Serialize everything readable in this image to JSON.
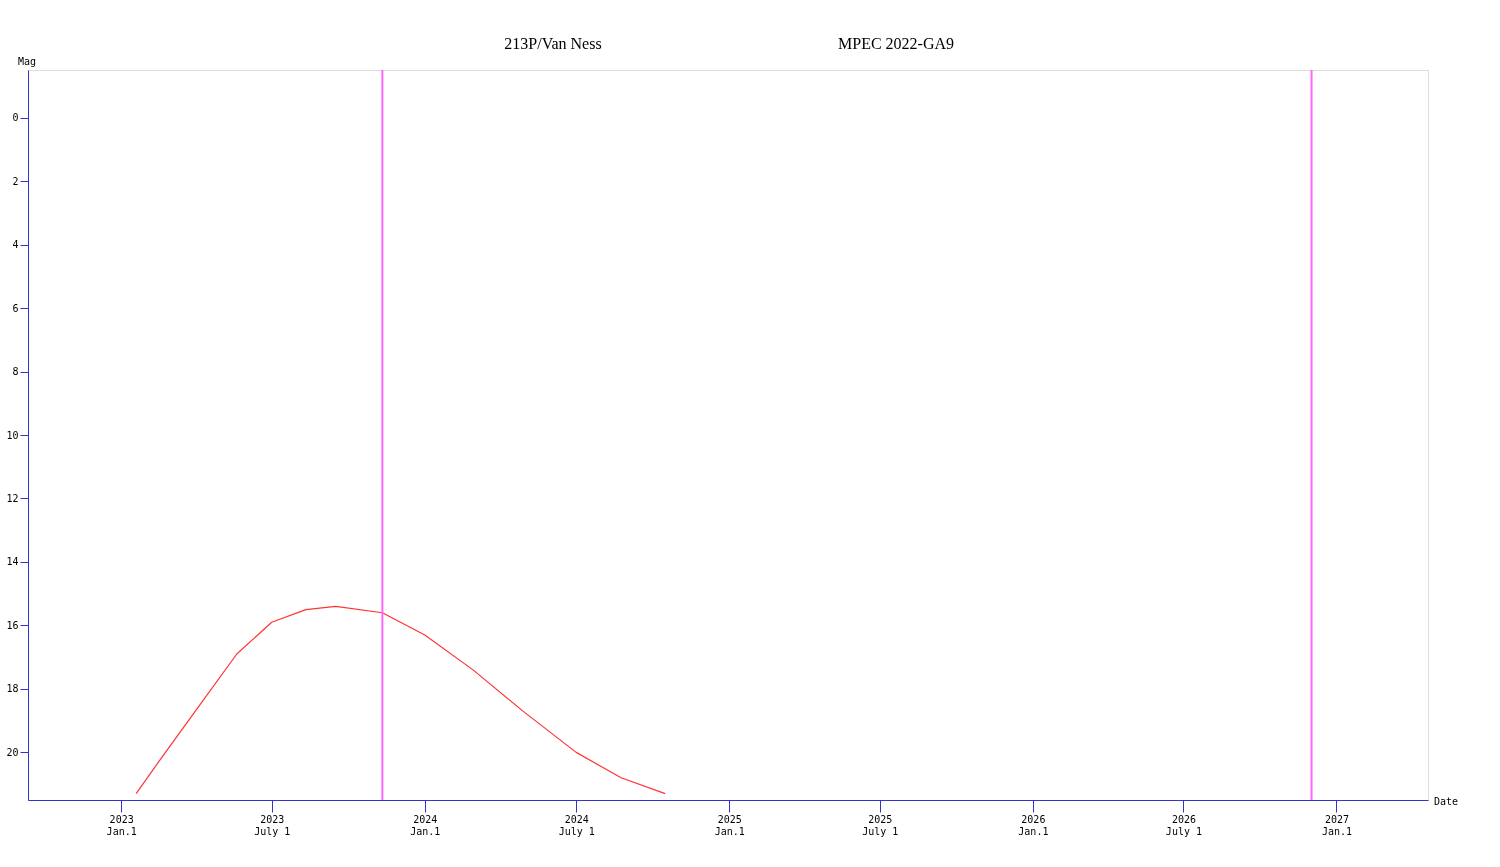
{
  "chart_data": {
    "type": "line",
    "title": "213P/Van Ness",
    "subtitle": "MPEC 2022-GA9",
    "xlabel": "Date",
    "ylabel": "Mag",
    "x": [
      "2023-01-19",
      "2023-02-15",
      "2023-04-03",
      "2023-05-20",
      "2023-07-01",
      "2023-08-11",
      "2023-09-16",
      "2023-11-11",
      "2024-01-01",
      "2024-02-28",
      "2024-04-28",
      "2024-07-01",
      "2024-08-24",
      "2024-10-16"
    ],
    "series": [
      {
        "color": "#ff3333",
        "values": [
          21.3,
          20.3,
          18.6,
          16.9,
          15.9,
          15.5,
          15.4,
          15.6,
          16.3,
          17.4,
          18.7,
          20.0,
          20.8,
          21.3
        ]
      }
    ],
    "xlim": [
      "2022-09-11",
      "2027-04-21"
    ],
    "ylim": [
      21.5,
      -1.5
    ],
    "xticks": [
      {
        "value": "2023-01-01",
        "label": "2023\nJan.1"
      },
      {
        "value": "2023-07-01",
        "label": "2023\nJuly 1"
      },
      {
        "value": "2024-01-01",
        "label": "2024\nJan.1"
      },
      {
        "value": "2024-07-01",
        "label": "2024\nJuly 1"
      },
      {
        "value": "2025-01-01",
        "label": "2025\nJan.1"
      },
      {
        "value": "2025-07-01",
        "label": "2025\nJuly 1"
      },
      {
        "value": "2026-01-01",
        "label": "2026\nJan.1"
      },
      {
        "value": "2026-07-01",
        "label": "2026\nJuly 1"
      },
      {
        "value": "2027-01-01",
        "label": "2027\nJan.1"
      }
    ],
    "yticks": [
      0,
      2,
      4,
      6,
      8,
      10,
      12,
      14,
      16,
      18,
      20
    ],
    "ref_lines": [
      {
        "axis": "x",
        "value": "2023-11-11",
        "color": "#ff66ff"
      },
      {
        "axis": "x",
        "value": "2026-12-02",
        "color": "#ff66ff"
      }
    ],
    "grid": false,
    "marker": "none",
    "line_style": "solid"
  }
}
